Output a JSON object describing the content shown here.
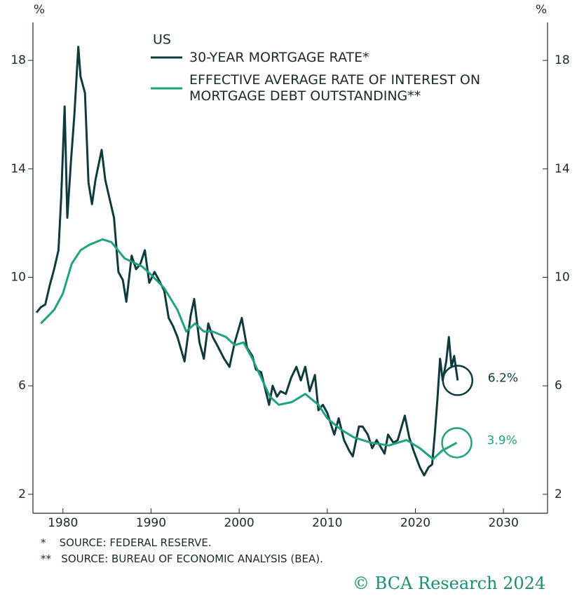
{
  "chart_data": {
    "type": "line",
    "y_label": "%",
    "y2_label": "%",
    "legend_title": "US",
    "xlim": [
      1976.6,
      2035
    ],
    "xticks": [
      1980,
      1990,
      2000,
      2010,
      2020,
      2030
    ],
    "ylim": [
      1.3,
      19.4
    ],
    "yticks": [
      2,
      6,
      10,
      14,
      18
    ],
    "y2lim": [
      1.3,
      19.4
    ],
    "y2ticks": [
      2,
      6,
      10,
      14,
      18
    ],
    "series": [
      {
        "name": "30-YEAR MORTGAGE RATE*",
        "color": "#0f3a3d",
        "x": [
          1977.0,
          1977.5,
          1978.0,
          1978.5,
          1979.0,
          1979.5,
          1979.8,
          1980.2,
          1980.5,
          1980.9,
          1981.3,
          1981.75,
          1982.0,
          1982.5,
          1982.9,
          1983.3,
          1983.7,
          1984.4,
          1984.8,
          1985.3,
          1985.8,
          1986.3,
          1986.8,
          1987.2,
          1987.8,
          1988.3,
          1988.8,
          1989.3,
          1989.8,
          1990.4,
          1990.9,
          1991.5,
          1992.0,
          1992.5,
          1993.0,
          1993.8,
          1994.5,
          1994.9,
          1995.5,
          1996.0,
          1996.5,
          1997.0,
          1997.5,
          1998.3,
          1998.9,
          1999.5,
          2000.3,
          2000.9,
          2001.5,
          2001.9,
          2002.5,
          2003.4,
          2003.8,
          2004.3,
          2004.7,
          2005.3,
          2005.9,
          2006.5,
          2007.0,
          2007.5,
          2008.0,
          2008.6,
          2009.0,
          2009.5,
          2010.0,
          2010.8,
          2011.3,
          2011.9,
          2012.5,
          2012.9,
          2013.6,
          2014.0,
          2014.6,
          2015.1,
          2015.6,
          2016.5,
          2016.9,
          2017.5,
          2018.0,
          2018.8,
          2019.3,
          2019.8,
          2020.5,
          2021.0,
          2021.5,
          2021.9,
          2022.2,
          2022.5,
          2022.8,
          2023.1,
          2023.5,
          2023.8,
          2024.1,
          2024.4,
          2024.8
        ],
        "values": [
          8.7,
          8.9,
          9.0,
          9.7,
          10.3,
          11.0,
          12.9,
          16.3,
          12.2,
          14.2,
          16.0,
          18.5,
          17.4,
          16.8,
          13.5,
          12.7,
          13.6,
          14.7,
          13.6,
          12.9,
          12.2,
          10.2,
          9.9,
          9.1,
          10.8,
          10.3,
          10.5,
          11.0,
          9.8,
          10.2,
          9.9,
          9.5,
          8.5,
          8.2,
          7.8,
          6.9,
          8.6,
          9.2,
          7.6,
          7.0,
          8.3,
          7.8,
          7.5,
          7.0,
          6.7,
          7.6,
          8.5,
          7.4,
          7.1,
          6.6,
          6.5,
          5.3,
          6.0,
          5.6,
          5.8,
          5.7,
          6.3,
          6.7,
          6.2,
          6.7,
          5.8,
          6.4,
          5.1,
          5.3,
          5.0,
          4.2,
          4.8,
          4.0,
          3.6,
          3.4,
          4.5,
          4.5,
          4.2,
          3.7,
          4.0,
          3.5,
          4.2,
          3.9,
          4.0,
          4.9,
          4.1,
          3.6,
          3.0,
          2.7,
          3.0,
          3.1,
          4.2,
          5.5,
          7.0,
          6.2,
          6.9,
          7.8,
          6.7,
          7.1,
          6.2
        ]
      },
      {
        "name": "EFFECTIVE AVERAGE RATE OF INTEREST ON MORTGAGE DEBT OUTSTANDING**",
        "color": "#1fa37f",
        "x": [
          1977.5,
          1979,
          1980,
          1981,
          1982,
          1983,
          1984.5,
          1985.5,
          1987,
          1989,
          1990,
          1991.5,
          1993,
          1994,
          1995,
          1996,
          1997,
          1998.5,
          1999.5,
          2000.5,
          2001.5,
          2002.5,
          2003.5,
          2004.5,
          2006,
          2007.5,
          2009,
          2010,
          2011.5,
          2013,
          2015,
          2017,
          2019,
          2020.5,
          2022,
          2023,
          2024.7
        ],
        "values": [
          8.3,
          8.8,
          9.4,
          10.5,
          11.0,
          11.2,
          11.4,
          11.3,
          10.7,
          10.4,
          10.1,
          9.6,
          8.8,
          8.0,
          8.3,
          8.0,
          8.0,
          7.8,
          7.5,
          7.6,
          7.0,
          6.3,
          5.6,
          5.3,
          5.4,
          5.7,
          5.3,
          4.8,
          4.4,
          4.1,
          3.9,
          3.8,
          4.0,
          3.7,
          3.3,
          3.6,
          3.9
        ]
      }
    ],
    "annotations": [
      {
        "label": "6.2%",
        "value": 6.2,
        "series": 0
      },
      {
        "label": "3.9%",
        "value": 3.9,
        "series": 1
      }
    ],
    "footnotes": [
      "*    SOURCE: FEDERAL RESERVE.",
      "**   SOURCE: BUREAU OF ECONOMIC ANALYSIS (BEA)."
    ],
    "credit": "© BCA Research 2024"
  }
}
